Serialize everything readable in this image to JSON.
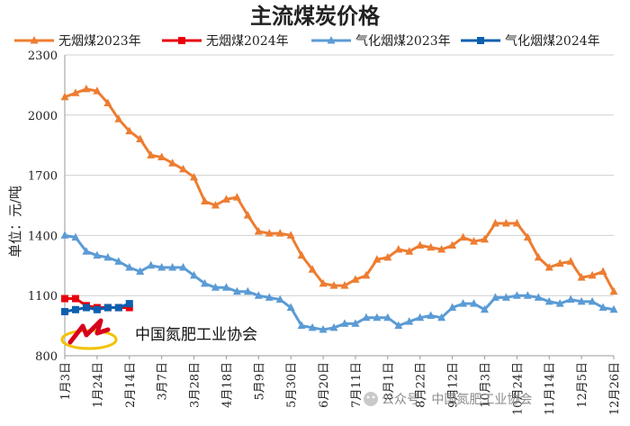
{
  "chart_data": {
    "type": "line",
    "title": "主流煤炭价格",
    "ylabel": "单位：元/吨",
    "ylim": [
      800,
      2300
    ],
    "yticks": [
      800,
      1100,
      1400,
      1700,
      2000,
      2300
    ],
    "x_tick_labels": [
      "1月3日",
      "1月24日",
      "2月14日",
      "3月7日",
      "3月28日",
      "4月18日",
      "5月9日",
      "5月30日",
      "6月20日",
      "7月11日",
      "8月1日",
      "8月22日",
      "9月12日",
      "10月3日",
      "10月24日",
      "11月14日",
      "12月5日",
      "12月26日"
    ],
    "grid": true,
    "legend_position": "top",
    "series": [
      {
        "name": "无烟煤2023年",
        "color": "#ED7D31",
        "marker": "triangle",
        "values": [
          2090,
          2110,
          2130,
          2120,
          2060,
          1980,
          1920,
          1880,
          1800,
          1790,
          1760,
          1730,
          1690,
          1570,
          1550,
          1580,
          1590,
          1500,
          1420,
          1410,
          1410,
          1400,
          1300,
          1230,
          1160,
          1150,
          1150,
          1180,
          1200,
          1280,
          1290,
          1330,
          1320,
          1350,
          1340,
          1330,
          1350,
          1390,
          1370,
          1380,
          1460,
          1460,
          1460,
          1390,
          1290,
          1240,
          1260,
          1270,
          1190,
          1200,
          1220,
          1120
        ]
      },
      {
        "name": "无烟煤2024年",
        "color": "#E8000B",
        "marker": "square",
        "values": [
          1085,
          1085,
          1050,
          1040,
          1040,
          1040,
          1040
        ]
      },
      {
        "name": "气化烟煤2023年",
        "color": "#5B9BD5",
        "marker": "triangle",
        "values": [
          1400,
          1390,
          1320,
          1300,
          1290,
          1270,
          1240,
          1220,
          1250,
          1240,
          1240,
          1240,
          1200,
          1160,
          1140,
          1140,
          1120,
          1120,
          1100,
          1090,
          1080,
          1040,
          950,
          940,
          930,
          940,
          960,
          960,
          990,
          990,
          990,
          950,
          970,
          990,
          1000,
          990,
          1040,
          1060,
          1060,
          1030,
          1090,
          1090,
          1100,
          1100,
          1090,
          1070,
          1060,
          1080,
          1070,
          1070,
          1040,
          1030
        ]
      },
      {
        "name": "气化烟煤2024年",
        "color": "#0B5FAF",
        "marker": "square",
        "values": [
          1020,
          1030,
          1040,
          1030,
          1040,
          1040,
          1060
        ]
      }
    ]
  },
  "watermark": {
    "org_name": "中国氮肥工业协会",
    "wechat_account": "公众号 · 中国氮肥工业协会"
  }
}
